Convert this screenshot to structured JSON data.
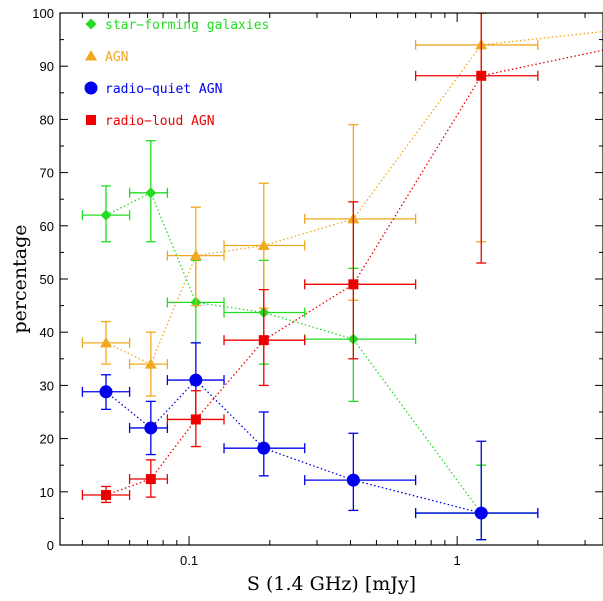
{
  "chart_data": {
    "type": "scatter",
    "title": "",
    "xlabel": "S (1.4 GHz) [mJy]",
    "ylabel": "percentage",
    "xscale": "log",
    "xlim": [
      0.033,
      3.5
    ],
    "ylim": [
      0,
      100
    ],
    "x_ticks": [
      {
        "value": 0.1,
        "label": "0.1"
      },
      {
        "value": 1,
        "label": "1"
      }
    ],
    "y_ticks": [
      0,
      10,
      20,
      30,
      40,
      50,
      60,
      70,
      80,
      90,
      100
    ],
    "grid": false,
    "legend_position": "top-left",
    "series": [
      {
        "name": "star−forming galaxies",
        "color": "#22dd22",
        "marker": "diamond",
        "points": [
          {
            "x": 0.049,
            "y": 62.0,
            "xlo": 0.04,
            "xhi": 0.06,
            "ylo": 57.0,
            "yhi": 67.5
          },
          {
            "x": 0.072,
            "y": 66.2,
            "xlo": 0.06,
            "xhi": 0.083,
            "ylo": 57.0,
            "yhi": 76.0
          },
          {
            "x": 0.106,
            "y": 45.6,
            "xlo": 0.083,
            "xhi": 0.135,
            "ylo": 38.0,
            "yhi": 53.5
          },
          {
            "x": 0.19,
            "y": 43.7,
            "xlo": 0.135,
            "xhi": 0.27,
            "ylo": 34.0,
            "yhi": 53.5
          },
          {
            "x": 0.41,
            "y": 38.7,
            "xlo": 0.27,
            "xhi": 0.7,
            "ylo": 27.0,
            "yhi": 52.0
          },
          {
            "x": 1.23,
            "y": 6.0,
            "xlo": 0.7,
            "xhi": 2.0,
            "ylo": 1.0,
            "yhi": 15.0
          }
        ]
      },
      {
        "name": "AGN",
        "color": "#f0a820",
        "marker": "triangle",
        "points": [
          {
            "x": 0.049,
            "y": 38.0,
            "xlo": 0.04,
            "xhi": 0.06,
            "ylo": 34.0,
            "yhi": 42.0
          },
          {
            "x": 0.072,
            "y": 34.0,
            "xlo": 0.06,
            "xhi": 0.083,
            "ylo": 28.0,
            "yhi": 40.0
          },
          {
            "x": 0.106,
            "y": 54.4,
            "xlo": 0.083,
            "xhi": 0.135,
            "ylo": 45.0,
            "yhi": 63.5
          },
          {
            "x": 0.19,
            "y": 56.3,
            "xlo": 0.135,
            "xhi": 0.27,
            "ylo": 44.5,
            "yhi": 68.0
          },
          {
            "x": 0.41,
            "y": 61.3,
            "xlo": 0.27,
            "xhi": 0.7,
            "ylo": 46.0,
            "yhi": 79.0
          },
          {
            "x": 1.23,
            "y": 94.0,
            "xlo": 0.7,
            "xhi": 2.0,
            "ylo": 57.0,
            "yhi": 100.0
          },
          {
            "x": 3.5,
            "y": 96.5
          }
        ]
      },
      {
        "name": "radio−quiet AGN",
        "color": "#0000ee",
        "marker": "circle",
        "points": [
          {
            "x": 0.049,
            "y": 28.8,
            "xlo": 0.04,
            "xhi": 0.06,
            "ylo": 25.5,
            "yhi": 32.0
          },
          {
            "x": 0.072,
            "y": 22.0,
            "xlo": 0.06,
            "xhi": 0.083,
            "ylo": 17.0,
            "yhi": 27.0
          },
          {
            "x": 0.106,
            "y": 31.0,
            "xlo": 0.083,
            "xhi": 0.135,
            "ylo": 24.0,
            "yhi": 38.0
          },
          {
            "x": 0.19,
            "y": 18.2,
            "xlo": 0.135,
            "xhi": 0.27,
            "ylo": 13.0,
            "yhi": 25.0
          },
          {
            "x": 0.41,
            "y": 12.2,
            "xlo": 0.27,
            "xhi": 0.7,
            "ylo": 6.5,
            "yhi": 21.0
          },
          {
            "x": 1.23,
            "y": 6.0,
            "xlo": 0.7,
            "xhi": 2.0,
            "ylo": 1.0,
            "yhi": 19.5
          }
        ]
      },
      {
        "name": "radio−loud AGN",
        "color": "#ee0000",
        "marker": "square",
        "points": [
          {
            "x": 0.049,
            "y": 9.4,
            "xlo": 0.04,
            "xhi": 0.06,
            "ylo": 8.0,
            "yhi": 11.0
          },
          {
            "x": 0.072,
            "y": 12.4,
            "xlo": 0.06,
            "xhi": 0.083,
            "ylo": 9.0,
            "yhi": 16.0
          },
          {
            "x": 0.106,
            "y": 23.6,
            "xlo": 0.083,
            "xhi": 0.135,
            "ylo": 18.5,
            "yhi": 29.0
          },
          {
            "x": 0.19,
            "y": 38.5,
            "xlo": 0.135,
            "xhi": 0.27,
            "ylo": 30.0,
            "yhi": 48.0
          },
          {
            "x": 0.41,
            "y": 49.0,
            "xlo": 0.27,
            "xhi": 0.7,
            "ylo": 35.0,
            "yhi": 64.5
          },
          {
            "x": 1.23,
            "y": 88.2,
            "xlo": 0.7,
            "xhi": 2.0,
            "ylo": 53.0,
            "yhi": 100.0
          },
          {
            "x": 3.5,
            "y": 93.0
          }
        ]
      }
    ]
  }
}
